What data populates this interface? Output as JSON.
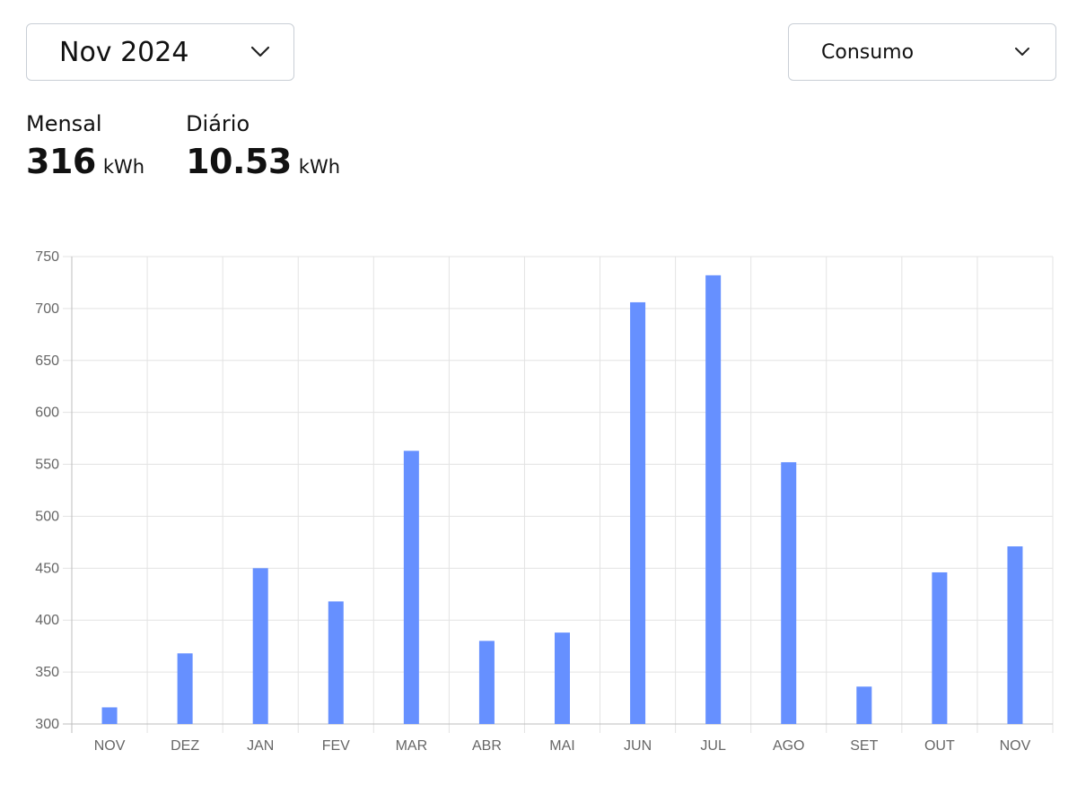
{
  "period_select": {
    "value": "Nov 2024"
  },
  "metric_select": {
    "value": "Consumo"
  },
  "stats": {
    "monthly": {
      "label": "Mensal",
      "value": "316",
      "unit": "kWh"
    },
    "daily": {
      "label": "Diário",
      "value": "10.53",
      "unit": "kWh"
    }
  },
  "chart_data": {
    "type": "bar",
    "categories": [
      "NOV",
      "DEZ",
      "JAN",
      "FEV",
      "MAR",
      "ABR",
      "MAI",
      "JUN",
      "JUL",
      "AGO",
      "SET",
      "OUT",
      "NOV"
    ],
    "series": [
      {
        "values": [
          316,
          368,
          450,
          418,
          563,
          380,
          388,
          706,
          732,
          552,
          336,
          446,
          471
        ]
      }
    ],
    "ylim": [
      300,
      750
    ],
    "yticks": [
      300,
      350,
      400,
      450,
      500,
      550,
      600,
      650,
      700,
      750
    ],
    "grid": true,
    "bar_color": "#6690ff"
  }
}
